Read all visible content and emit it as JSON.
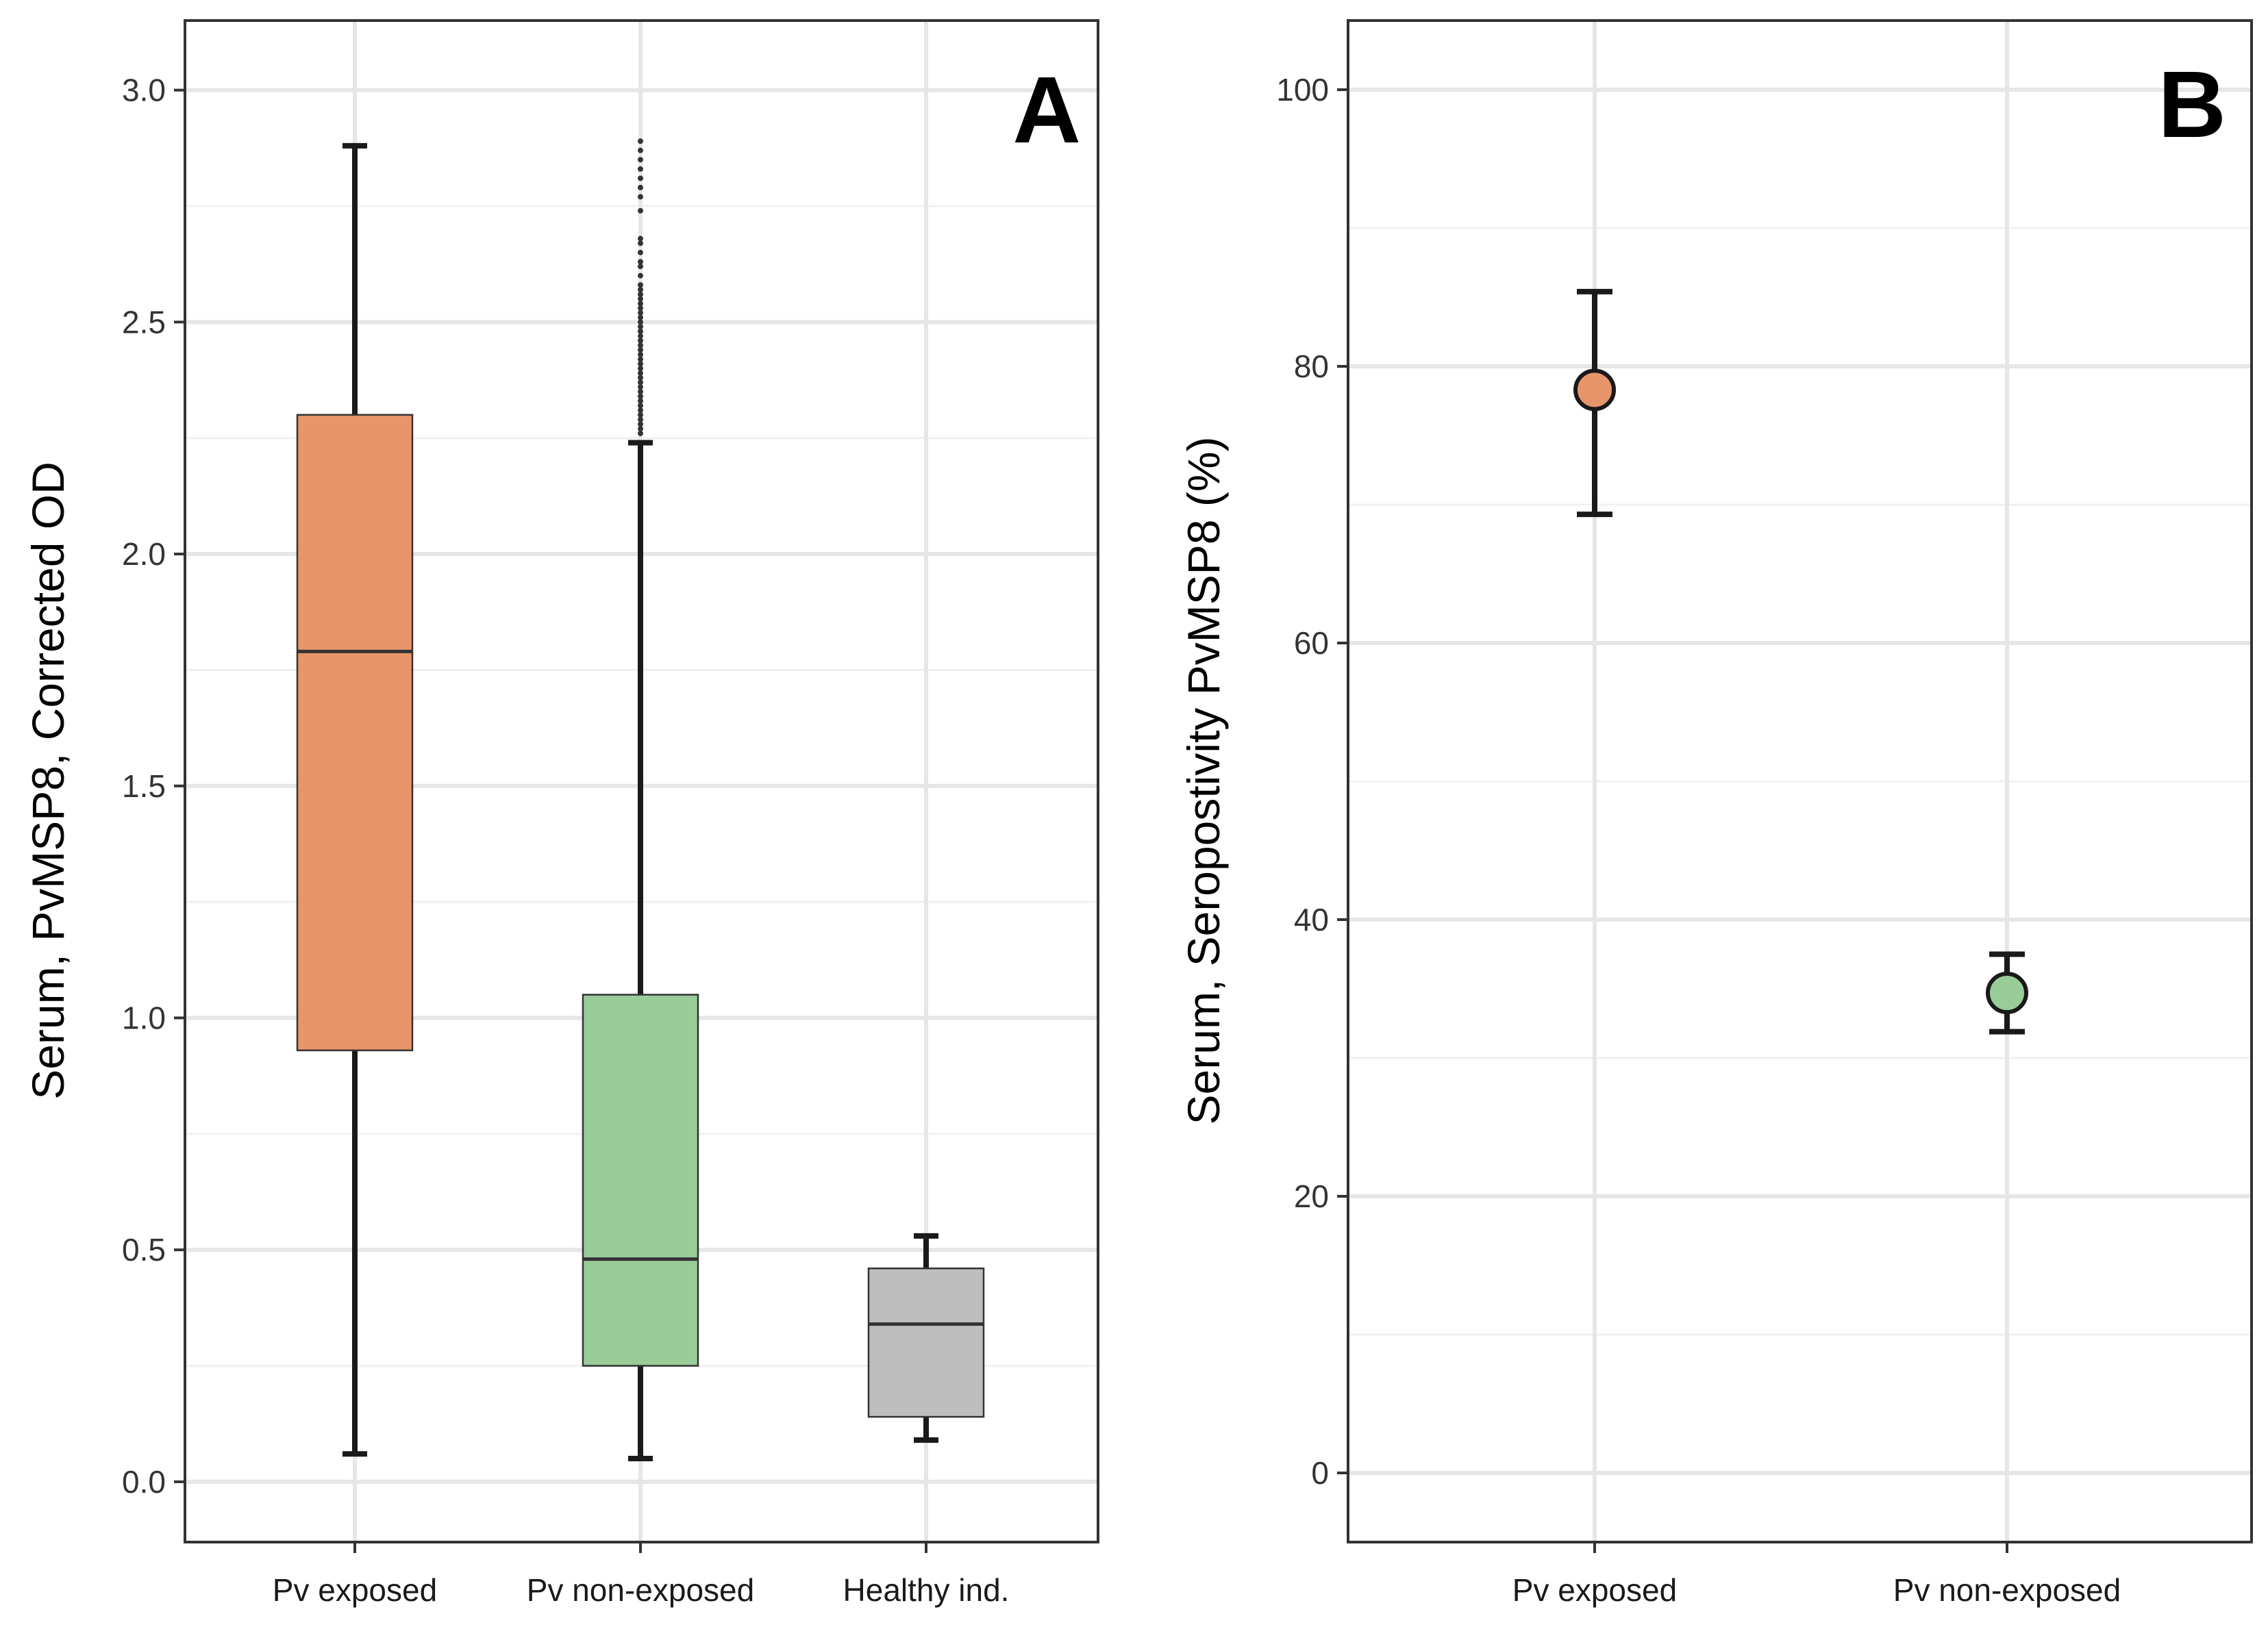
{
  "chart_data": [
    {
      "type": "box",
      "panel_label": "A",
      "ylabel": "Serum, PvMSP8, Corrected OD",
      "xlabel": "",
      "ylim": [
        -0.13,
        3.15
      ],
      "yticks": [
        0.0,
        0.5,
        1.0,
        1.5,
        2.0,
        2.5,
        3.0
      ],
      "ytick_labels": [
        "0.0",
        "0.5",
        "1.0",
        "1.5",
        "2.0",
        "2.5",
        "3.0"
      ],
      "grid": true,
      "categories": [
        "Pv exposed",
        "Pv non-exposed",
        "Healthy ind."
      ],
      "boxes": [
        {
          "category": "Pv exposed",
          "min": 0.06,
          "q1": 0.93,
          "median": 1.79,
          "q3": 2.3,
          "max": 2.88,
          "color": "#E8956B",
          "outliers": []
        },
        {
          "category": "Pv non-exposed",
          "min": 0.05,
          "q1": 0.25,
          "median": 0.48,
          "q3": 1.05,
          "max": 2.24,
          "color": "#99CC99",
          "outliers": [
            2.26,
            2.27,
            2.28,
            2.29,
            2.3,
            2.31,
            2.32,
            2.33,
            2.34,
            2.35,
            2.36,
            2.37,
            2.38,
            2.39,
            2.4,
            2.41,
            2.42,
            2.43,
            2.44,
            2.45,
            2.46,
            2.47,
            2.48,
            2.49,
            2.5,
            2.51,
            2.52,
            2.53,
            2.54,
            2.55,
            2.56,
            2.57,
            2.58,
            2.6,
            2.62,
            2.63,
            2.65,
            2.67,
            2.68,
            2.74,
            2.77,
            2.79,
            2.81,
            2.83,
            2.85,
            2.87,
            2.89
          ]
        },
        {
          "category": "Healthy ind.",
          "min": 0.09,
          "q1": 0.14,
          "median": 0.34,
          "q3": 0.46,
          "max": 0.53,
          "color": "#BEBEBE",
          "outliers": []
        }
      ]
    },
    {
      "type": "scatter",
      "panel_label": "B",
      "ylabel": "Serum, Seropostivity PvMSP8  (%)",
      "xlabel": "",
      "ylim": [
        -5,
        105
      ],
      "yticks": [
        0,
        20,
        40,
        60,
        80,
        100
      ],
      "ytick_labels": [
        "0",
        "20",
        "40",
        "60",
        "80",
        "100"
      ],
      "grid": true,
      "categories": [
        "Pv exposed",
        "Pv non-exposed"
      ],
      "points": [
        {
          "category": "Pv exposed",
          "value": 78.3,
          "lower": 69.3,
          "upper": 85.4,
          "color": "#E8956B"
        },
        {
          "category": "Pv non-exposed",
          "value": 34.7,
          "lower": 31.9,
          "upper": 37.5,
          "color": "#99CC99"
        }
      ]
    }
  ]
}
